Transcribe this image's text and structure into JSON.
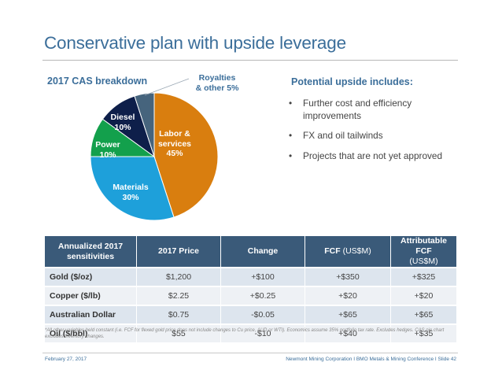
{
  "slide": {
    "title": "Conservative plan with upside leverage"
  },
  "cas": {
    "title": "2017 CAS breakdown"
  },
  "chart_data": {
    "type": "pie",
    "title": "2017 CAS breakdown",
    "slices": [
      {
        "name_lines": [
          "Labor &",
          "services"
        ],
        "label": "45%",
        "value": 45,
        "color": "#d97e0f"
      },
      {
        "name_lines": [
          "Materials"
        ],
        "label": "30%",
        "value": 30,
        "color": "#1ea0da"
      },
      {
        "name_lines": [
          "Power"
        ],
        "label": "10%",
        "value": 10,
        "color": "#13a04c"
      },
      {
        "name_lines": [
          "Diesel"
        ],
        "label": "10%",
        "value": 10,
        "color": "#0e1f4a"
      },
      {
        "name_lines": [
          "Royalties",
          "& other"
        ],
        "label": "5%",
        "value": 5,
        "color": "#46647d"
      }
    ]
  },
  "upside": {
    "title": "Potential upside includes:",
    "bullet_glyph": "•",
    "items": [
      "Further cost and efficiency improvements",
      "FX and oil tailwinds",
      "Projects that are not yet approved"
    ]
  },
  "table": {
    "headers": {
      "col1": "Annualized 2017 sensitivities",
      "col2": "2017 Price",
      "col3": "Change",
      "col4": "FCF",
      "col4_unit": "(US$M)",
      "col5": "Attributable FCF",
      "col5_unit": "(US$M)"
    },
    "rows": [
      {
        "name": "Gold ($/oz)",
        "price": "$1,200",
        "change": "+$100",
        "fcf": "+$350",
        "attr": "+$325"
      },
      {
        "name": "Copper ($/lb)",
        "price": "$2.25",
        "change": "+$0.25",
        "fcf": "+$20",
        "attr": "+$20"
      },
      {
        "name": "Australian Dollar",
        "price": "$0.75",
        "change": "-$0.05",
        "fcf": "+$65",
        "attr": "+$65"
      },
      {
        "name": "Oil ($/bbl)",
        "price": "$55",
        "change": "-$10",
        "fcf": "+$40",
        "attr": "+$35"
      }
    ]
  },
  "footnote": "*All other variables held constant (i.e. FCF for flexed gold price does not include changes to Cu price, AUD or WTI). Economics assume 35% portfolio tax rate. Excludes hedges. CAS pie chart excludes inventory changes.",
  "footer": {
    "date": "February 27, 2017",
    "right": "Newmont Mining Corporation  I  BMO Metals & Mining Conference  I  Slide 42"
  }
}
